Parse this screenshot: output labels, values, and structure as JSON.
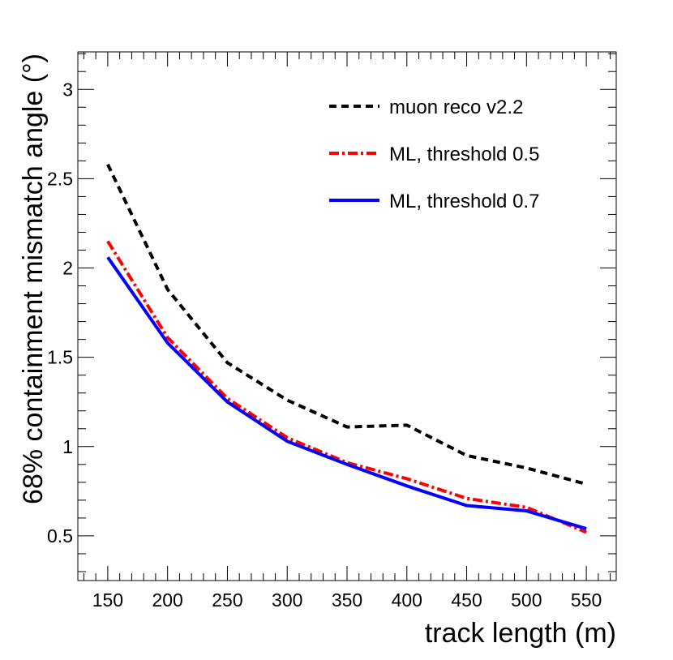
{
  "chart_data": {
    "type": "line",
    "title": "",
    "xlabel": "track length (m)",
    "ylabel": "68% containment mismatch angle (°)",
    "xlim": [
      125,
      575
    ],
    "ylim": [
      0.25,
      3.21
    ],
    "x_ticks": [
      150,
      200,
      250,
      300,
      350,
      400,
      450,
      500,
      550
    ],
    "x_tick_labels": [
      "150",
      "200",
      "250",
      "300",
      "350",
      "400",
      "450",
      "500",
      "550"
    ],
    "y_ticks": [
      0.5,
      1,
      1.5,
      2,
      2.5,
      3
    ],
    "y_tick_labels": [
      "0.5",
      "1",
      "1.5",
      "2",
      "2.5",
      "3"
    ],
    "grid": false,
    "legend_position": "top-right",
    "x": [
      150,
      200,
      250,
      300,
      350,
      400,
      450,
      500,
      550
    ],
    "series": [
      {
        "name": "muon reco v2.2",
        "color": "#000000",
        "style": "dashed",
        "values": [
          2.58,
          1.88,
          1.47,
          1.26,
          1.11,
          1.12,
          0.95,
          0.88,
          0.79
        ]
      },
      {
        "name": "ML, threshold 0.5",
        "color": "#ff0000",
        "style": "dashdot",
        "values": [
          2.15,
          1.61,
          1.27,
          1.05,
          0.91,
          0.82,
          0.71,
          0.66,
          0.52
        ]
      },
      {
        "name": "ML, threshold 0.7",
        "color": "#0000ff",
        "style": "solid",
        "values": [
          2.06,
          1.58,
          1.25,
          1.03,
          0.9,
          0.78,
          0.67,
          0.64,
          0.54
        ]
      }
    ]
  }
}
